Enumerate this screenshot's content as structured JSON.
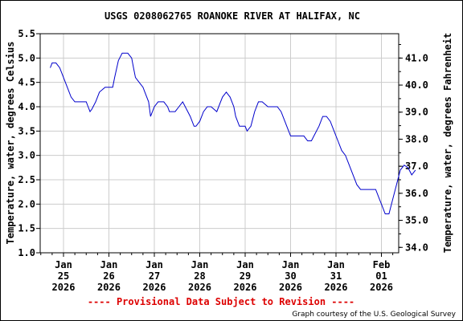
{
  "chart_data": {
    "type": "line",
    "title": "USGS 0208062765 ROANOKE RIVER AT HALIFAX, NC",
    "ylabel": "Temperature, water, degrees Celsius",
    "y2label": "Temperature, water, degrees Fahrenheit",
    "ylim": [
      1.0,
      5.5
    ],
    "xlim": [
      "2026-01-25T00:00",
      "2026-02-02T00:00"
    ],
    "x_ticks": [
      {
        "line1": "Jan",
        "line2": "25",
        "line3": "2026"
      },
      {
        "line1": "Jan",
        "line2": "26",
        "line3": "2026"
      },
      {
        "line1": "Jan",
        "line2": "27",
        "line3": "2026"
      },
      {
        "line1": "Jan",
        "line2": "28",
        "line3": "2026"
      },
      {
        "line1": "Jan",
        "line2": "29",
        "line3": "2026"
      },
      {
        "line1": "Jan",
        "line2": "30",
        "line3": "2026"
      },
      {
        "line1": "Jan",
        "line2": "31",
        "line3": "2026"
      },
      {
        "line1": "Feb",
        "line2": "01",
        "line3": "2026"
      }
    ],
    "y_ticks": [
      "1.0",
      "1.5",
      "2.0",
      "2.5",
      "3.0",
      "3.5",
      "4.0",
      "4.5",
      "5.0",
      "5.5"
    ],
    "y2_ticks": [
      "34.0",
      "35.0",
      "36.0",
      "37.0",
      "38.0",
      "39.0",
      "40.0",
      "41.0"
    ],
    "line_color": "#0000cc",
    "series": [
      {
        "x": [
          "2026-01-24T17:00",
          "2026-01-24T18:00",
          "2026-01-24T20:00",
          "2026-01-24T22:00",
          "2026-01-25T00:00",
          "2026-01-25T02:00",
          "2026-01-25T04:00",
          "2026-01-25T06:00",
          "2026-01-25T10:00",
          "2026-01-25T12:00",
          "2026-01-25T13:00",
          "2026-01-25T14:00",
          "2026-01-25T15:00",
          "2026-01-25T17:00",
          "2026-01-25T19:00",
          "2026-01-25T22:00",
          "2026-01-26T00:00",
          "2026-01-26T02:00",
          "2026-01-26T03:00",
          "2026-01-26T05:00",
          "2026-01-26T07:00",
          "2026-01-26T10:00",
          "2026-01-26T12:00",
          "2026-01-26T13:00",
          "2026-01-26T14:00",
          "2026-01-26T16:00",
          "2026-01-26T18:00",
          "2026-01-26T19:00",
          "2026-01-26T21:00",
          "2026-01-26T22:00",
          "2026-01-27T00:00",
          "2026-01-27T02:00",
          "2026-01-27T05:00",
          "2026-01-27T07:00",
          "2026-01-27T08:00",
          "2026-01-27T11:00",
          "2026-01-27T13:00",
          "2026-01-27T15:00",
          "2026-01-27T17:00",
          "2026-01-27T19:00",
          "2026-01-27T21:00",
          "2026-01-27T22:00",
          "2026-01-28T00:00",
          "2026-01-28T02:00",
          "2026-01-28T04:00",
          "2026-01-28T06:00",
          "2026-01-28T09:00",
          "2026-01-28T11:00",
          "2026-01-28T12:00",
          "2026-01-28T14:00",
          "2026-01-28T16:00",
          "2026-01-28T18:00",
          "2026-01-28T19:00",
          "2026-01-28T21:00",
          "2026-01-29T00:00",
          "2026-01-29T01:00",
          "2026-01-29T03:00",
          "2026-01-29T05:00",
          "2026-01-29T07:00",
          "2026-01-29T09:00",
          "2026-01-29T12:00",
          "2026-01-29T14:00",
          "2026-01-29T17:00",
          "2026-01-29T19:00",
          "2026-01-29T21:00",
          "2026-01-29T23:00",
          "2026-01-30T00:00",
          "2026-01-30T02:00",
          "2026-01-30T04:00",
          "2026-01-30T07:00",
          "2026-01-30T09:00",
          "2026-01-30T11:00",
          "2026-01-30T13:00",
          "2026-01-30T15:00",
          "2026-01-30T17:00",
          "2026-01-30T19:00",
          "2026-01-30T21:00",
          "2026-01-30T23:00",
          "2026-01-31T01:00",
          "2026-01-31T03:00",
          "2026-01-31T05:00",
          "2026-01-31T07:00",
          "2026-01-31T09:00",
          "2026-01-31T11:00",
          "2026-01-31T13:00",
          "2026-01-31T17:00",
          "2026-01-31T19:00",
          "2026-01-31T21:00",
          "2026-01-31T23:00",
          "2026-02-01T00:00",
          "2026-02-01T02:00",
          "2026-02-01T04:00",
          "2026-02-01T06:00",
          "2026-02-01T08:00",
          "2026-02-01T10:00",
          "2026-02-01T12:00",
          "2026-02-01T14:00",
          "2026-02-01T16:00",
          "2026-02-01T18:00"
        ],
        "y": [
          4.8,
          4.9,
          4.9,
          4.8,
          4.6,
          4.4,
          4.2,
          4.1,
          4.1,
          4.1,
          4.0,
          3.9,
          3.95,
          4.1,
          4.3,
          4.4,
          4.4,
          4.4,
          4.6,
          4.95,
          5.1,
          5.1,
          5.0,
          4.8,
          4.6,
          4.5,
          4.4,
          4.3,
          4.1,
          3.8,
          4.0,
          4.1,
          4.1,
          4.0,
          3.9,
          3.9,
          4.0,
          4.1,
          3.95,
          3.8,
          3.6,
          3.6,
          3.7,
          3.9,
          4.0,
          4.0,
          3.9,
          4.1,
          4.2,
          4.3,
          4.2,
          4.0,
          3.8,
          3.6,
          3.6,
          3.5,
          3.6,
          3.9,
          4.1,
          4.1,
          4.0,
          4.0,
          4.0,
          3.9,
          3.7,
          3.5,
          3.4,
          3.4,
          3.4,
          3.4,
          3.3,
          3.3,
          3.45,
          3.6,
          3.8,
          3.8,
          3.7,
          3.5,
          3.3,
          3.1,
          3.0,
          2.8,
          2.6,
          2.4,
          2.3,
          2.3,
          2.3,
          2.3,
          2.1,
          2.0,
          1.8,
          1.8,
          2.1,
          2.4,
          2.7,
          2.8,
          2.75,
          2.6,
          2.7
        ]
      }
    ]
  },
  "footer": {
    "notice": "---- Provisional Data Subject to Revision ----",
    "credit": "Graph courtesy of the U.S. Geological Survey"
  }
}
